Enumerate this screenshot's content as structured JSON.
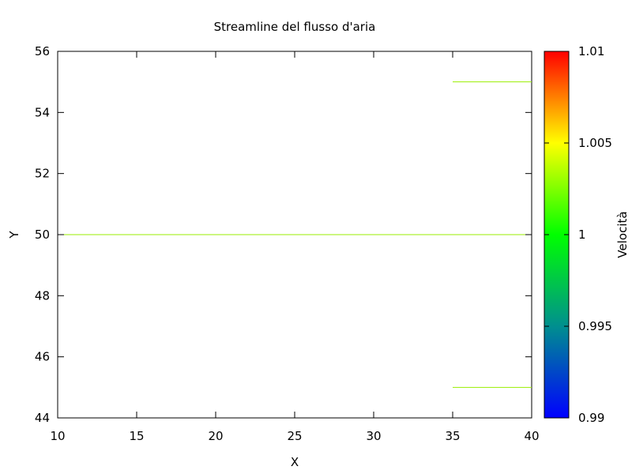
{
  "chart_data": {
    "type": "line",
    "title": "Streamline del flusso d'aria",
    "xlabel": "X",
    "ylabel": "Y",
    "xlim": [
      10,
      40
    ],
    "ylim": [
      44,
      56
    ],
    "xticks": [
      "10",
      "15",
      "20",
      "25",
      "30",
      "35",
      "40"
    ],
    "yticks": [
      "44",
      "46",
      "48",
      "50",
      "52",
      "54",
      "56"
    ],
    "grid": false,
    "series": [
      {
        "x": [
          10,
          40
        ],
        "y": [
          50,
          50
        ],
        "color": "#99ee00"
      },
      {
        "x": [
          35,
          40
        ],
        "y": [
          55,
          55
        ],
        "color": "#99ee00"
      },
      {
        "x": [
          35,
          40
        ],
        "y": [
          45,
          45
        ],
        "color": "#99ee00"
      }
    ],
    "colorbar": {
      "label": "Velocità",
      "range": [
        0.99,
        1.01
      ],
      "ticks": [
        "0.99",
        "0.995",
        "1",
        "1.005",
        "1.01"
      ],
      "palette": [
        "#0000ff",
        "#008f8f",
        "#00ff00",
        "#ffff00",
        "#ff0000"
      ]
    }
  }
}
